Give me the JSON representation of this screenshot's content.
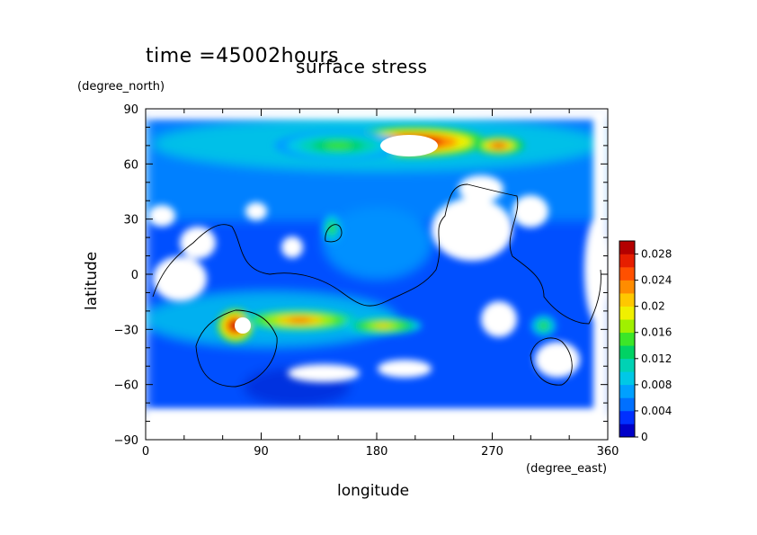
{
  "chart_data": {
    "type": "heatmap",
    "title": "time =45002hours",
    "subtitle": "surface stress",
    "xlabel": "longitude",
    "ylabel": "latitude",
    "x_unit": "(degree_east)",
    "y_unit": "(degree_north)",
    "xlim": [
      0,
      360
    ],
    "ylim": [
      -90,
      90
    ],
    "x_ticks": [
      "0",
      "90",
      "180",
      "270",
      "360"
    ],
    "y_ticks": [
      "90",
      "60",
      "30",
      "0",
      "−30",
      "−60",
      "−90"
    ],
    "colorbar": {
      "min": 0,
      "max": 0.03,
      "tick_labels": [
        "0.028",
        "0.024",
        "0.02",
        "0.016",
        "0.012",
        "0.008",
        "0.004",
        "0"
      ],
      "colors": [
        "#0000c8",
        "#0030ff",
        "#0070ff",
        "#00a0ff",
        "#00c8e6",
        "#00d2b4",
        "#00d264",
        "#3ce628",
        "#a0f000",
        "#f0f000",
        "#ffc800",
        "#ff8c00",
        "#ff5000",
        "#e61e00",
        "#b40000"
      ]
    },
    "hotspots": [
      {
        "lon": 210,
        "lat": 72,
        "value": 0.03,
        "rx": 55,
        "ry": 8
      },
      {
        "lon": 275,
        "lat": 70,
        "value": 0.026,
        "rx": 20,
        "ry": 5
      },
      {
        "lon": 150,
        "lat": 70,
        "value": 0.014,
        "rx": 50,
        "ry": 8
      },
      {
        "lon": 70,
        "lat": -28,
        "value": 0.03,
        "rx": 14,
        "ry": 9
      },
      {
        "lon": 120,
        "lat": -25,
        "value": 0.024,
        "rx": 45,
        "ry": 6
      },
      {
        "lon": 185,
        "lat": -28,
        "value": 0.02,
        "rx": 30,
        "ry": 5
      },
      {
        "lon": 310,
        "lat": -28,
        "value": 0.014,
        "rx": 10,
        "ry": 6
      },
      {
        "lon": 145,
        "lat": 25,
        "value": 0.014,
        "rx": 8,
        "ry": 8
      }
    ]
  }
}
